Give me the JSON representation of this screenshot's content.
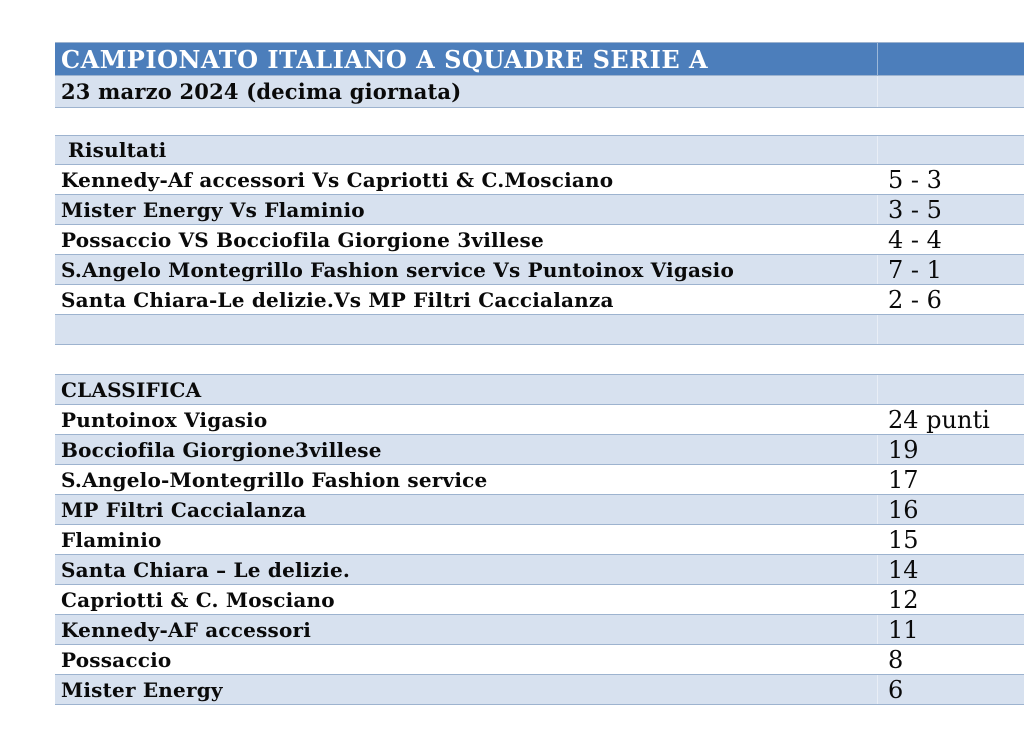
{
  "table": {
    "header": {
      "title": "CAMPIONATO ITALIANO A SQUADRE SERIE A"
    },
    "date_line": "23 marzo 2024 (decima giornata)",
    "results": {
      "label": "Risultati",
      "matches": [
        {
          "fixture": "Kennedy-Af accessori Vs Capriotti & C.Mosciano",
          "score": "5 - 3"
        },
        {
          "fixture": "Mister Energy Vs Flaminio",
          "score": "3 - 5"
        },
        {
          "fixture": "Possaccio VS Bocciofila Giorgione 3villese",
          "score": "4 - 4"
        },
        {
          "fixture": "S.Angelo Montegrillo Fashion service Vs Puntoinox Vigasio",
          "score": "7 - 1"
        },
        {
          "fixture": "Santa Chiara-Le delizie.Vs MP Filtri Caccialanza",
          "score": "2 - 6"
        }
      ]
    },
    "standings": {
      "label": "CLASSIFICA",
      "rows": [
        {
          "team": "Puntoinox Vigasio",
          "points": "24 punti"
        },
        {
          "team": "Bocciofila Giorgione3villese",
          "points": "19"
        },
        {
          "team": "S.Angelo-Montegrillo Fashion service",
          "points": "17"
        },
        {
          "team": "MP Filtri Caccialanza",
          "points": "16"
        },
        {
          "team": "Flaminio",
          "points": "15"
        },
        {
          "team": "Santa Chiara – Le delizie.",
          "points": "14"
        },
        {
          "team": "Capriotti & C. Mosciano",
          "points": "12"
        },
        {
          "team": "Kennedy-AF accessori",
          "points": "11"
        },
        {
          "team": "Possaccio",
          "points": "8"
        },
        {
          "team": "Mister Energy",
          "points": "6"
        }
      ]
    }
  },
  "colors": {
    "header_bg": "#4C7EBB",
    "band_bg": "#D7E1EF",
    "border": "#9DB3CF",
    "header_text": "#FFFFFF",
    "body_text": "#0A0A0A",
    "page_bg": "#FFFFFF"
  }
}
